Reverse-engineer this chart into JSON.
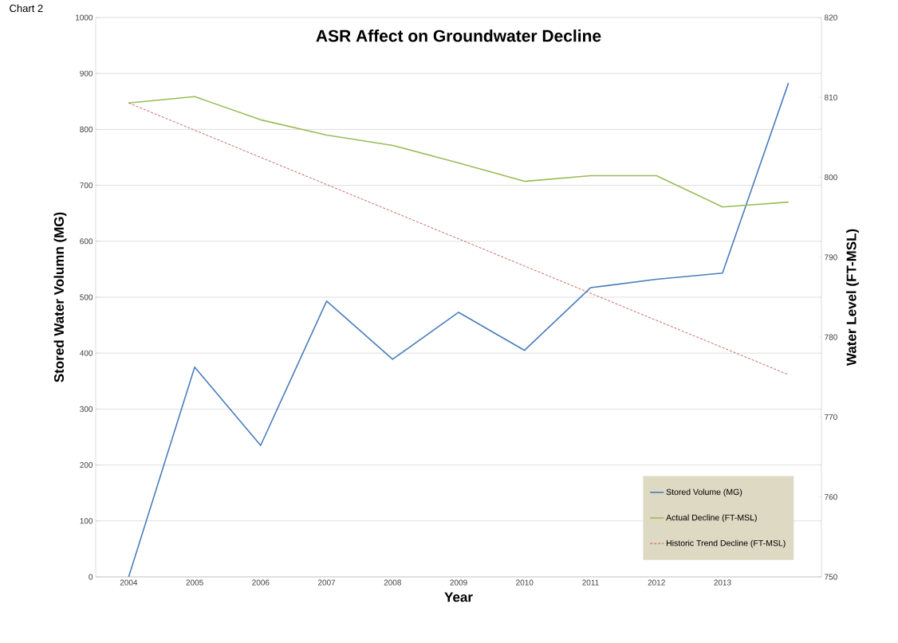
{
  "chart_data": {
    "type": "line",
    "title": "ASR Affect on Groundwater Decline",
    "xlabel": "Year",
    "ylabel": "Stored Water Volumn (MG)",
    "y2label": "Water Level (FT-MSL)",
    "annotations": [
      "Chart 2"
    ],
    "categories": [
      "2004",
      "2005",
      "2006",
      "2007",
      "2008",
      "2009",
      "2010",
      "2011",
      "2012",
      "2013",
      null
    ],
    "series": [
      {
        "name": "Stored Volume (MG)",
        "color": "#4a7ebb",
        "line_style": "solid",
        "values": [
          0,
          375,
          235,
          493,
          389,
          473,
          405,
          517,
          532,
          543,
          883
        ]
      },
      {
        "name": "Actual Decline (FT-MSL)",
        "color": "#9bbb59",
        "line_style": "solid",
        "axis": "y2",
        "values": [
          809.3,
          810.1,
          807.2,
          805.3,
          804.0,
          801.8,
          799.5,
          800.2,
          800.2,
          796.3,
          796.9
        ]
      },
      {
        "name": "Historic Trend Decline (FT-MSL)",
        "color": "#c0504d",
        "line_style": "dashed",
        "axis": "y2",
        "values": [
          809.3,
          805.9,
          802.5,
          799.1,
          795.7,
          792.3,
          788.9,
          785.5,
          782.1,
          778.7,
          775.3
        ]
      }
    ],
    "ylim": [
      0,
      1000
    ],
    "yticks": [
      0,
      100,
      200,
      300,
      400,
      500,
      600,
      700,
      800,
      900,
      1000
    ],
    "y2lim": [
      750,
      820
    ],
    "y2ticks": [
      750,
      760,
      770,
      780,
      790,
      800,
      810,
      820
    ],
    "grid": "y",
    "legend": "bottom right"
  }
}
